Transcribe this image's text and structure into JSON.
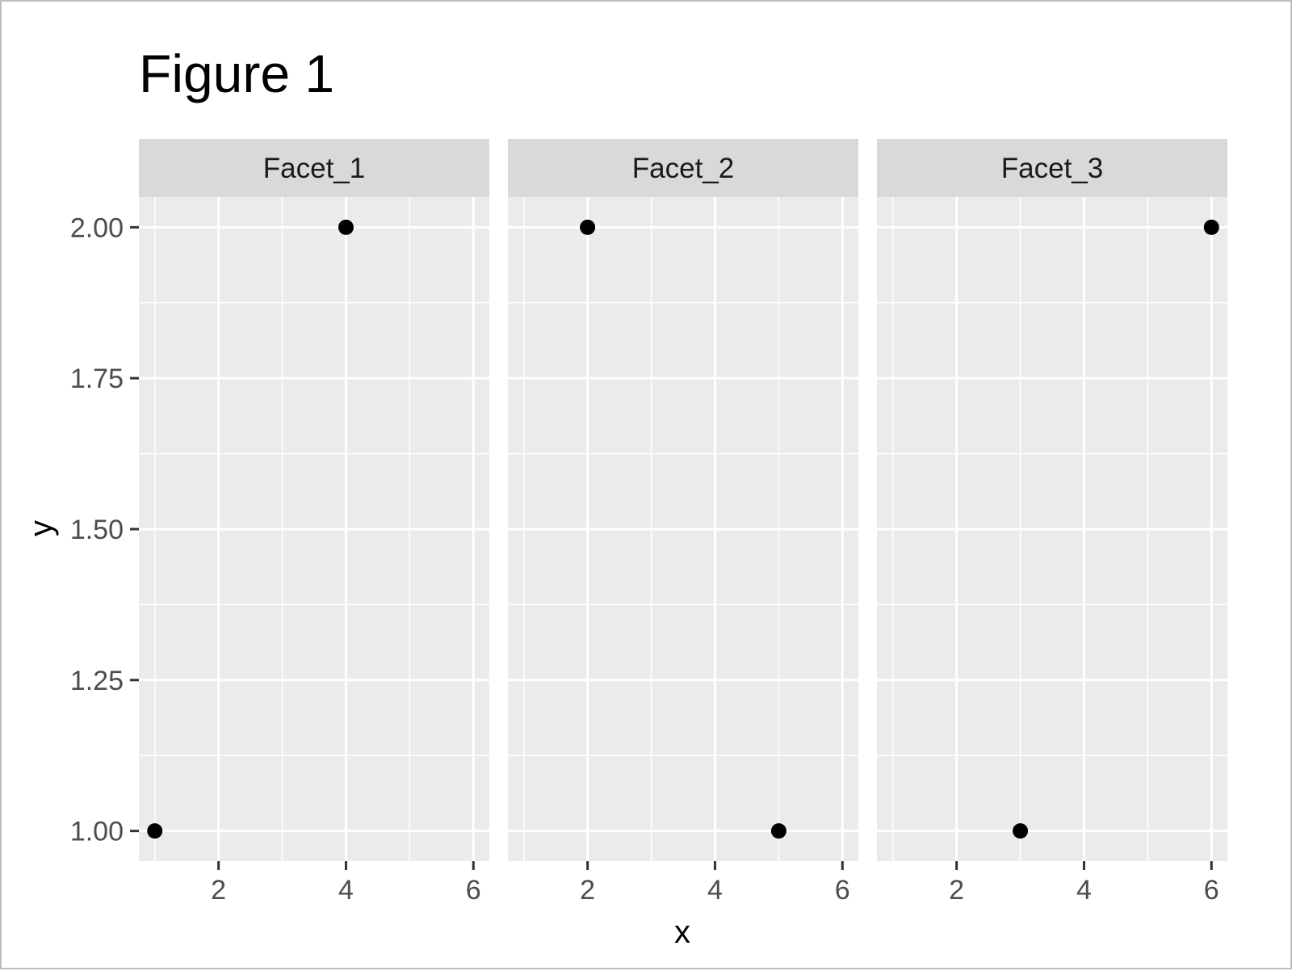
{
  "chart_data": {
    "type": "scatter",
    "title": "Figure 1",
    "xlabel": "x",
    "ylabel": "y",
    "xlim": [
      0.75,
      6.25
    ],
    "ylim": [
      0.95,
      2.05
    ],
    "x_ticks": [
      2,
      4,
      6
    ],
    "y_ticks": [
      1.0,
      1.25,
      1.5,
      1.75,
      2.0
    ],
    "x_tick_labels": [
      "2",
      "4",
      "6"
    ],
    "y_tick_labels": [
      "1.00",
      "1.25",
      "1.50",
      "1.75",
      "2.00"
    ],
    "grid": true,
    "facets": [
      {
        "label": "Facet_1",
        "points": [
          {
            "x": 1,
            "y": 1
          },
          {
            "x": 4,
            "y": 2
          }
        ]
      },
      {
        "label": "Facet_2",
        "points": [
          {
            "x": 2,
            "y": 2
          },
          {
            "x": 5,
            "y": 1
          }
        ]
      },
      {
        "label": "Facet_3",
        "points": [
          {
            "x": 3,
            "y": 1
          },
          {
            "x": 6,
            "y": 2
          }
        ]
      }
    ]
  },
  "colors": {
    "panel_background": "#ebebeb",
    "strip_background": "#d9d9d9",
    "grid": "#ffffff",
    "point": "#000000",
    "tick": "#333333"
  }
}
